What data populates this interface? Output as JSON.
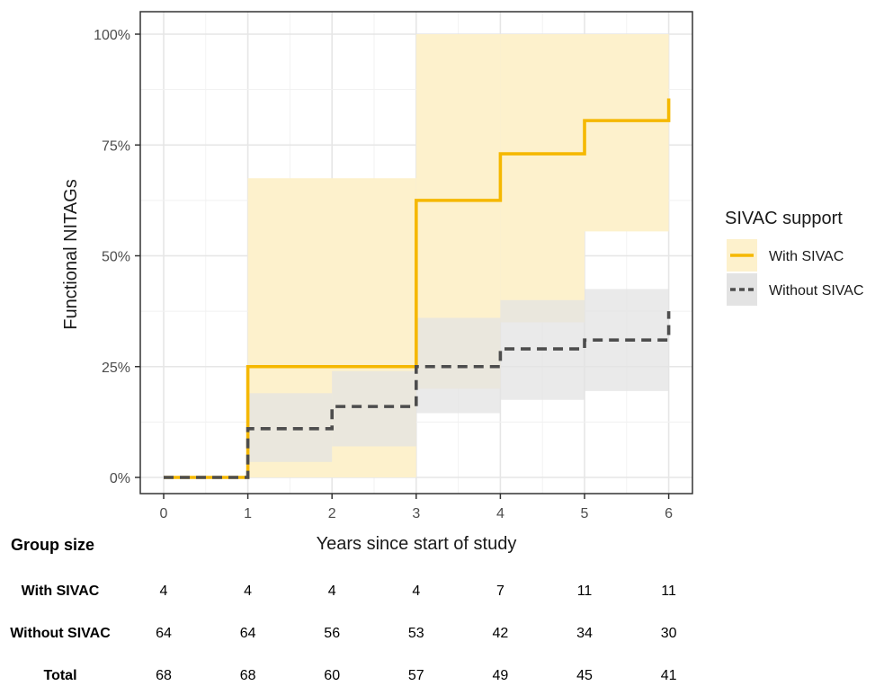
{
  "chart_data": {
    "type": "line",
    "step": true,
    "xlabel": "Years since start of study",
    "ylabel": "Functional NITAGs",
    "xlim": [
      0,
      6
    ],
    "ylim": [
      0,
      1
    ],
    "x_ticks": [
      "0",
      "1",
      "2",
      "3",
      "4",
      "5",
      "6"
    ],
    "y_ticks": [
      {
        "value": 0,
        "label": "0%"
      },
      {
        "value": 0.25,
        "label": "25%"
      },
      {
        "value": 0.5,
        "label": "50%"
      },
      {
        "value": 0.75,
        "label": "75%"
      },
      {
        "value": 1,
        "label": "100%"
      }
    ],
    "grid": true,
    "legend": {
      "title": "SIVAC support",
      "position": "right"
    },
    "series": [
      {
        "name": "With SIVAC",
        "color": "#f5b800",
        "line_style": "solid",
        "band_color": "#fdf1cc",
        "steps": [
          {
            "x0": 0,
            "x1": 1,
            "y": 0,
            "lower": 0,
            "upper": 0
          },
          {
            "x0": 1,
            "x1": 3,
            "y": 0.25,
            "lower": 0,
            "upper": 0.675
          },
          {
            "x0": 3,
            "x1": 4,
            "y": 0.625,
            "lower": 0.2,
            "upper": 1.0
          },
          {
            "x0": 4,
            "x1": 5,
            "y": 0.73,
            "lower": 0.35,
            "upper": 1.0
          },
          {
            "x0": 5,
            "x1": 6,
            "y": 0.805,
            "lower": 0.555,
            "upper": 1.0
          }
        ],
        "end": 0.855
      },
      {
        "name": "Without SIVAC",
        "color": "#4d4d4d",
        "line_style": "dashed",
        "band_color": "#e3e3e3",
        "steps": [
          {
            "x0": 0,
            "x1": 1,
            "y": 0,
            "lower": 0,
            "upper": 0
          },
          {
            "x0": 1,
            "x1": 2,
            "y": 0.11,
            "lower": 0.035,
            "upper": 0.19
          },
          {
            "x0": 2,
            "x1": 3,
            "y": 0.16,
            "lower": 0.07,
            "upper": 0.24
          },
          {
            "x0": 3,
            "x1": 4,
            "y": 0.25,
            "lower": 0.145,
            "upper": 0.36
          },
          {
            "x0": 4,
            "x1": 5,
            "y": 0.29,
            "lower": 0.175,
            "upper": 0.4
          },
          {
            "x0": 5,
            "x1": 6,
            "y": 0.31,
            "lower": 0.195,
            "upper": 0.425
          }
        ],
        "end": 0.375
      }
    ],
    "risk_table": {
      "title": "Group size",
      "rows": [
        {
          "label": "With SIVAC",
          "values": [
            "4",
            "4",
            "4",
            "4",
            "7",
            "11",
            "11"
          ]
        },
        {
          "label": "Without SIVAC",
          "values": [
            "64",
            "64",
            "56",
            "53",
            "42",
            "34",
            "30"
          ]
        },
        {
          "label": "Total",
          "values": [
            "68",
            "68",
            "60",
            "57",
            "49",
            "45",
            "41"
          ]
        }
      ]
    }
  }
}
